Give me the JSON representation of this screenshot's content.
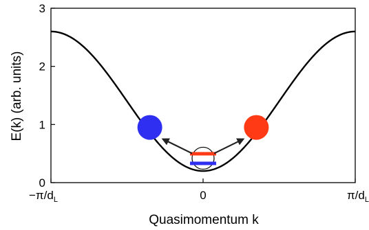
{
  "chart_data": {
    "type": "line",
    "xlabel": "Quasimomentum k",
    "ylabel": "E(k) (arb. units)",
    "xlim": [
      -3.1416,
      3.1416
    ],
    "ylim": [
      0,
      3
    ],
    "x_ticks": [
      {
        "value": -3.1416,
        "label": "−π/d",
        "sub": "L"
      },
      {
        "value": 0,
        "label": "0",
        "sub": ""
      },
      {
        "value": 3.1416,
        "label": "π/d",
        "sub": "L"
      }
    ],
    "y_ticks": [
      {
        "value": 0,
        "label": "0"
      },
      {
        "value": 1,
        "label": "1"
      },
      {
        "value": 2,
        "label": "2"
      },
      {
        "value": 3,
        "label": "3"
      }
    ],
    "series": [
      {
        "style": "line",
        "color": "#000000",
        "min_energy": 0.2,
        "max_energy": 2.6
      }
    ],
    "particles": [
      {
        "k": -1.1,
        "energy": 0.95,
        "color": "#2f2ff2"
      },
      {
        "k": 1.1,
        "energy": 0.95,
        "color": "#ff3a14"
      }
    ],
    "source": {
      "k": 0,
      "energy": 0.42,
      "stripe_colors": [
        "#ff3a14",
        "#2f2ff2"
      ]
    },
    "grid": false
  }
}
